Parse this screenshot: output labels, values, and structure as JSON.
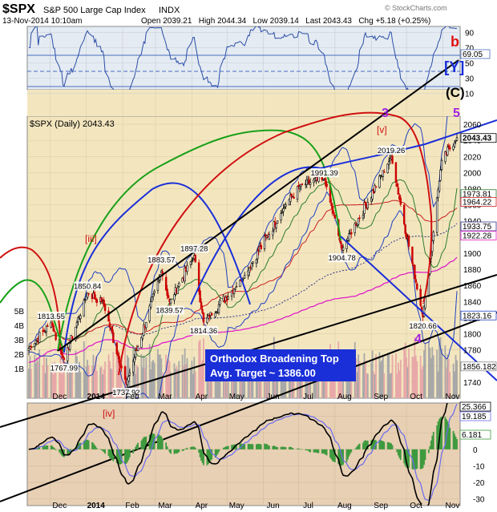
{
  "header": {
    "symbol": "$SPX",
    "name": "S&P 500 Large Cap Index",
    "exchange": "INDX",
    "date": "13-Nov-2014 10:10am",
    "quote": "Open 2039.21   High 2044.34   Low 2039.14   Last 2043.43   Chg +5.18 (+0.25%)",
    "watermark": "© StockCharts.com"
  },
  "rsi_panel": {
    "ticks": [
      "90",
      "70",
      "50",
      "30",
      "10"
    ],
    "value_label": "69.05"
  },
  "main_panel": {
    "legend": "$SPX (Daily) 2043.43",
    "price_ticks": [
      "2060",
      "2040",
      "2020",
      "2000",
      "1980",
      "1960",
      "1940",
      "1920",
      "1900",
      "1880",
      "1860",
      "1840",
      "1820",
      "1800",
      "1780",
      "1760",
      "1740"
    ],
    "value_labels": [
      "2043.43",
      "1973.81",
      "1964.22",
      "1933.75",
      "1922.28",
      "1823.16",
      "1856.182"
    ],
    "volume_ticks": [
      "5B",
      "4B",
      "3B",
      "2B",
      "1B"
    ],
    "price_callouts": [
      "1813.55",
      "1850.84",
      "1767.99",
      "1737.92",
      "1883.57",
      "1839.57",
      "1897.28",
      "1814.36",
      "1991.39",
      "1904.78",
      "2019.26",
      "1820.66"
    ],
    "wave_labels": {
      "b": "b",
      "Y": "[Y]",
      "C": "(C)",
      "five": "5",
      "three": "3",
      "four": "4",
      "v": "[v]",
      "iii": "[iii]"
    },
    "annotation_line1": "Orthodox Broadening Top",
    "annotation_line2": "Avg. Target ~ 1386.00"
  },
  "macd_panel": {
    "ticks": [
      "20",
      "10",
      "0",
      "-10",
      "-20",
      "-30"
    ],
    "value_labels": [
      "25.366",
      "19.185",
      "6.181"
    ],
    "wave_label": "[iv]"
  },
  "x_labels": [
    "Dec",
    "2014",
    "Feb",
    "Mar",
    "Apr",
    "May",
    "Jun",
    "Jul",
    "Aug",
    "Sep",
    "Oct",
    "Nov"
  ],
  "colors": {
    "up": "#000000",
    "down": "#cc0000",
    "panel_bg": "#f3e6bf",
    "rsi_bg": "#e4ebf2"
  },
  "chart_data": {
    "type": "line",
    "title": "$SPX (Daily) 2043.43",
    "ylim": [
      1720,
      2070
    ],
    "x": [
      "2013-11-13",
      "2013-12-02",
      "2013-12-13",
      "2014-01-02",
      "2014-01-15",
      "2014-02-04",
      "2014-03-06",
      "2014-03-13",
      "2014-04-03",
      "2014-04-11",
      "2014-05-15",
      "2014-06-20",
      "2014-07-03",
      "2014-07-23",
      "2014-08-07",
      "2014-09-18",
      "2014-10-15",
      "2014-10-31",
      "2014-11-13"
    ],
    "series": [
      {
        "name": "$SPX",
        "values": [
          1782,
          1813.55,
          1767.99,
          1850.84,
          1840,
          1737.92,
          1878,
          1839.57,
          1897.28,
          1814.36,
          1870,
          1960,
          1985,
          1991.39,
          1904.78,
          2019.26,
          1820.66,
          2015,
          2043.43
        ]
      }
    ]
  }
}
